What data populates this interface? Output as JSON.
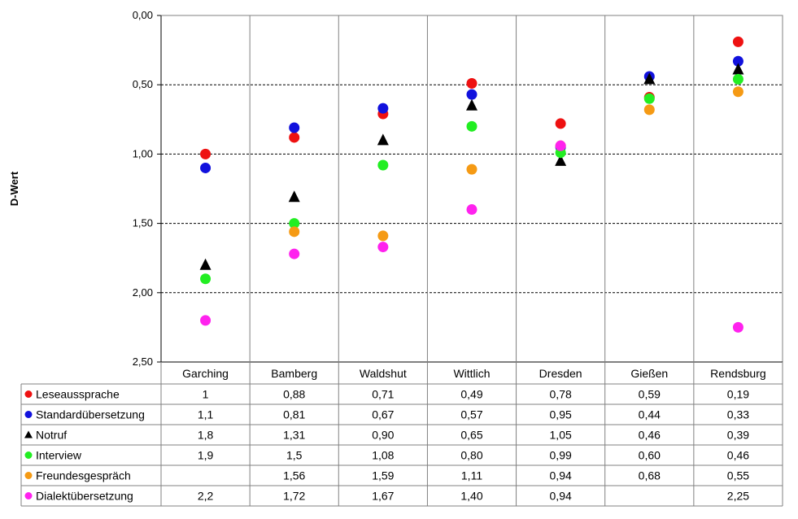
{
  "chart_data": {
    "type": "scatter",
    "title": "",
    "xlabel": "",
    "ylabel": "D-Wert",
    "ylim": [
      0,
      2.5
    ],
    "y_reversed": true,
    "y_ticks": [
      "0,00",
      "0,50",
      "1,00",
      "1,50",
      "2,00",
      "2,50"
    ],
    "y_tick_values": [
      0,
      0.5,
      1.0,
      1.5,
      2.0,
      2.5
    ],
    "grid": "dashed horizontal at 0.5 steps",
    "legend": "data table below chart",
    "categories": [
      "Garching",
      "Bamberg",
      "Waldshut",
      "Wittlich",
      "Dresden",
      "Gießen",
      "Rendsburg"
    ],
    "series": [
      {
        "name": "Leseaussprache",
        "marker": "circle",
        "color": "#ee1111",
        "values": [
          1.0,
          0.88,
          0.71,
          0.49,
          0.78,
          0.59,
          0.19
        ],
        "labels": [
          "1",
          "0,88",
          "0,71",
          "0,49",
          "0,78",
          "0,59",
          "0,19"
        ]
      },
      {
        "name": "Standardübersetzung",
        "marker": "circle",
        "color": "#1111dd",
        "values": [
          1.1,
          0.81,
          0.67,
          0.57,
          0.95,
          0.44,
          0.33
        ],
        "labels": [
          "1,1",
          "0,81",
          "0,67",
          "0,57",
          "0,95",
          "0,44",
          "0,33"
        ]
      },
      {
        "name": "Notruf",
        "marker": "triangle",
        "color": "#000000",
        "values": [
          1.8,
          1.31,
          0.9,
          0.65,
          1.05,
          0.46,
          0.39
        ],
        "labels": [
          "1,8",
          "1,31",
          "0,90",
          "0,65",
          "1,05",
          "0,46",
          "0,39"
        ]
      },
      {
        "name": "Interview",
        "marker": "circle",
        "color": "#22ee22",
        "values": [
          1.9,
          1.5,
          1.08,
          0.8,
          0.99,
          0.6,
          0.46
        ],
        "labels": [
          "1,9",
          "1,5",
          "1,08",
          "0,80",
          "0,99",
          "0,60",
          "0,46"
        ]
      },
      {
        "name": "Freundesgespräch",
        "marker": "circle",
        "color": "#f59a14",
        "values": [
          null,
          1.56,
          1.59,
          1.11,
          0.94,
          0.68,
          0.55
        ],
        "labels": [
          "",
          "1,56",
          "1,59",
          "1,11",
          "0,94",
          "0,68",
          "0,55"
        ]
      },
      {
        "name": "Dialektübersetzung",
        "marker": "circle",
        "color": "#ff22ee",
        "values": [
          2.2,
          1.72,
          1.67,
          1.4,
          0.94,
          null,
          2.25
        ],
        "labels": [
          "2,2",
          "1,72",
          "1,67",
          "1,40",
          "0,94",
          "",
          "2,25"
        ]
      }
    ]
  }
}
